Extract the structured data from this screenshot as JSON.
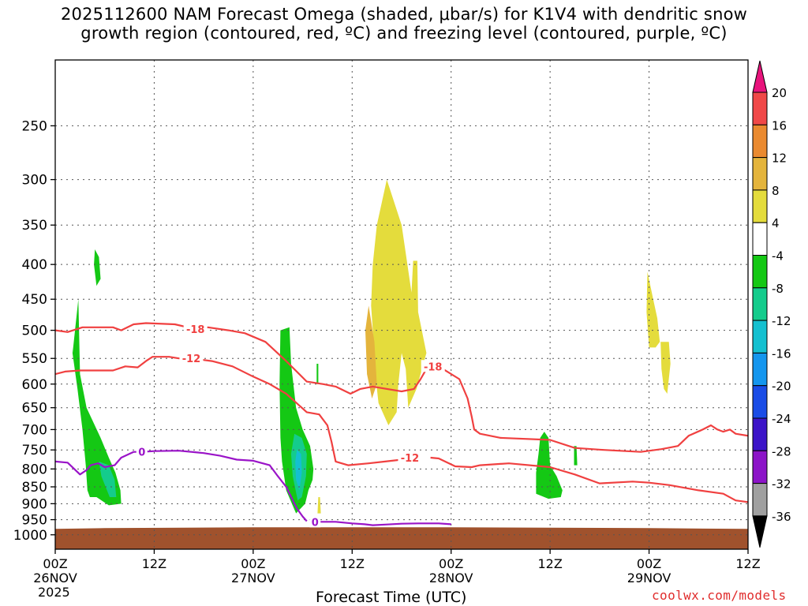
{
  "title": {
    "line1": "2025112600 NAM Forecast Omega (shaded, μbar/s) for K1V4 with dendritic snow",
    "line2": "growth region (contoured, red, ºC) and freezing level (contoured, purple, ºC)"
  },
  "credit": "coolwx.com/models",
  "chart_data": {
    "type": "contour",
    "x_axis": {
      "title": "Forecast Time (UTC)",
      "range_hours": [
        0,
        84
      ],
      "ticks": [
        {
          "h": 0,
          "label": "00Z",
          "sub": "26NOV",
          "sub2": "2025"
        },
        {
          "h": 12,
          "label": "12Z",
          "sub": "",
          "sub2": ""
        },
        {
          "h": 24,
          "label": "00Z",
          "sub": "27NOV",
          "sub2": ""
        },
        {
          "h": 36,
          "label": "12Z",
          "sub": "",
          "sub2": ""
        },
        {
          "h": 48,
          "label": "00Z",
          "sub": "28NOV",
          "sub2": ""
        },
        {
          "h": 60,
          "label": "12Z",
          "sub": "",
          "sub2": ""
        },
        {
          "h": 72,
          "label": "00Z",
          "sub": "29NOV",
          "sub2": ""
        },
        {
          "h": 84,
          "label": "12Z",
          "sub": "",
          "sub2": ""
        }
      ]
    },
    "y_axis": {
      "scale": "log",
      "range_hpa": [
        200,
        1050
      ],
      "ticks": [
        250,
        300,
        350,
        400,
        450,
        500,
        550,
        600,
        650,
        700,
        750,
        800,
        850,
        900,
        950,
        1000
      ]
    },
    "grid": true,
    "colorbar": {
      "levels": [
        "20",
        "16",
        "12",
        "8",
        "4",
        "-4",
        "-8",
        "-12",
        "-16",
        "-20",
        "-24",
        "-28",
        "-32",
        "-36"
      ],
      "colors": [
        "#e8147c",
        "#f04848",
        "#ea8a30",
        "#e4b43c",
        "#e4dc3c",
        "#ffffff",
        "#14c814",
        "#14cc8c",
        "#14c0d0",
        "#1496ee",
        "#1a4ce6",
        "#3c14c8",
        "#8c14c8",
        "#a0a0a0",
        "#000000"
      ]
    },
    "terrain": {
      "color": "#a0522d",
      "surface_hpa": 975
    },
    "shaded": [
      {
        "level": -4,
        "color": "#14c814",
        "pts": [
          [
            2.1,
            540
          ],
          [
            2.8,
            450
          ],
          [
            3.0,
            580
          ],
          [
            3.8,
            650
          ],
          [
            5.5,
            720
          ],
          [
            6.5,
            770
          ],
          [
            7.3,
            810
          ],
          [
            7.9,
            860
          ],
          [
            8.0,
            900
          ],
          [
            6.5,
            905
          ],
          [
            5.0,
            880
          ],
          [
            4.2,
            880
          ],
          [
            3.9,
            860
          ],
          [
            3.7,
            790
          ],
          [
            3.3,
            700
          ],
          [
            2.7,
            610
          ],
          [
            2.0,
            530
          ]
        ]
      },
      {
        "level": -4,
        "color": "#14c814",
        "pts": [
          [
            4.8,
            380
          ],
          [
            5.3,
            390
          ],
          [
            5.5,
            420
          ],
          [
            5.0,
            430
          ],
          [
            4.7,
            400
          ]
        ]
      },
      {
        "level": -4,
        "color": "#14c814",
        "pts": [
          [
            27.3,
            500
          ],
          [
            28.4,
            495
          ],
          [
            28.6,
            560
          ],
          [
            29.2,
            650
          ],
          [
            30.0,
            700
          ],
          [
            30.9,
            740
          ],
          [
            31.3,
            800
          ],
          [
            31.2,
            830
          ],
          [
            30.7,
            860
          ],
          [
            30.3,
            900
          ],
          [
            29.2,
            930
          ],
          [
            28.0,
            860
          ],
          [
            27.5,
            780
          ],
          [
            27.3,
            720
          ],
          [
            27.2,
            600
          ]
        ]
      },
      {
        "level": -4,
        "color": "#14c814",
        "pts": [
          [
            31.7,
            560
          ],
          [
            31.9,
            560
          ],
          [
            31.9,
            600
          ],
          [
            31.7,
            600
          ]
        ]
      },
      {
        "level": -4,
        "color": "#14c814",
        "pts": [
          [
            58.8,
            720
          ],
          [
            59.3,
            705
          ],
          [
            59.8,
            720
          ],
          [
            60.0,
            790
          ],
          [
            60.8,
            820
          ],
          [
            61.5,
            860
          ],
          [
            61.3,
            880
          ],
          [
            59.8,
            885
          ],
          [
            58.3,
            870
          ],
          [
            58.3,
            810
          ],
          [
            58.6,
            760
          ]
        ]
      },
      {
        "level": -4,
        "color": "#14c814",
        "pts": [
          [
            62.9,
            740
          ],
          [
            63.2,
            740
          ],
          [
            63.3,
            790
          ],
          [
            62.9,
            790
          ]
        ]
      },
      {
        "level": -8,
        "color": "#14cc8c",
        "pts": [
          [
            5.3,
            780
          ],
          [
            6.5,
            790
          ],
          [
            7.2,
            830
          ],
          [
            7.4,
            880
          ],
          [
            6.6,
            880
          ],
          [
            5.6,
            820
          ]
        ]
      },
      {
        "level": -8,
        "color": "#14cc8c",
        "pts": [
          [
            29.0,
            710
          ],
          [
            29.9,
            720
          ],
          [
            30.5,
            760
          ],
          [
            30.4,
            820
          ],
          [
            29.9,
            880
          ],
          [
            29.4,
            890
          ],
          [
            28.8,
            820
          ],
          [
            28.6,
            760
          ]
        ]
      },
      {
        "level": -12,
        "color": "#14c0d0",
        "pts": [
          [
            29.3,
            750
          ],
          [
            29.8,
            760
          ],
          [
            29.9,
            810
          ],
          [
            29.6,
            860
          ],
          [
            29.2,
            830
          ],
          [
            29.1,
            780
          ]
        ]
      },
      {
        "level": 4,
        "color": "#e4dc3c",
        "pts": [
          [
            40.2,
            300
          ],
          [
            42.0,
            350
          ],
          [
            43.2,
            440
          ],
          [
            43.4,
            395
          ],
          [
            43.9,
            395
          ],
          [
            44.0,
            470
          ],
          [
            45.0,
            540
          ],
          [
            43.8,
            610
          ],
          [
            42.8,
            650
          ],
          [
            42.5,
            570
          ],
          [
            42.0,
            540
          ],
          [
            41.6,
            600
          ],
          [
            41.4,
            660
          ],
          [
            40.4,
            690
          ],
          [
            39.2,
            640
          ],
          [
            38.8,
            580
          ],
          [
            38.6,
            520
          ],
          [
            38.3,
            460
          ],
          [
            38.5,
            400
          ],
          [
            39.0,
            350
          ]
        ]
      },
      {
        "level": 8,
        "color": "#e4b43c",
        "pts": [
          [
            38.0,
            460
          ],
          [
            38.7,
            520
          ],
          [
            39.0,
            600
          ],
          [
            38.4,
            630
          ],
          [
            37.8,
            580
          ],
          [
            37.6,
            500
          ]
        ]
      },
      {
        "level": 4,
        "color": "#e4dc3c",
        "pts": [
          [
            71.8,
            410
          ],
          [
            72.5,
            450
          ],
          [
            73.0,
            480
          ],
          [
            73.3,
            520
          ],
          [
            72.8,
            530
          ],
          [
            72.0,
            530
          ],
          [
            71.7,
            470
          ]
        ]
      },
      {
        "level": 4,
        "color": "#e4dc3c",
        "pts": [
          [
            73.4,
            520
          ],
          [
            74.4,
            520
          ],
          [
            74.6,
            560
          ],
          [
            74.2,
            620
          ],
          [
            73.8,
            610
          ],
          [
            73.5,
            570
          ]
        ]
      },
      {
        "level": 4,
        "color": "#e4dc3c",
        "pts": [
          [
            31.9,
            880
          ],
          [
            32.1,
            880
          ],
          [
            32.2,
            930
          ],
          [
            31.8,
            930
          ]
        ]
      }
    ],
    "contours": [
      {
        "name": "-18",
        "color": "#f04040",
        "label_at": [
          17.0,
          498
        ],
        "pts": [
          [
            0,
            500
          ],
          [
            1.5,
            503
          ],
          [
            3.3,
            495
          ],
          [
            7.0,
            495
          ],
          [
            8.0,
            500
          ],
          [
            9.5,
            490
          ],
          [
            11.0,
            488
          ],
          [
            14.5,
            490
          ],
          [
            17.0,
            498
          ],
          [
            18.5,
            495
          ],
          [
            21.0,
            500
          ],
          [
            23.0,
            505
          ],
          [
            25.5,
            520
          ],
          [
            28.0,
            555
          ],
          [
            30.5,
            595
          ],
          [
            32.5,
            600
          ],
          [
            34.0,
            605
          ],
          [
            35.8,
            620
          ],
          [
            37.0,
            610
          ],
          [
            38.5,
            605
          ],
          [
            42.0,
            615
          ],
          [
            43.5,
            610
          ],
          [
            44.3,
            590
          ],
          [
            45.0,
            570
          ]
        ]
      },
      {
        "name": "-18",
        "color": "#f04040",
        "label_at": [
          45.8,
          565
        ],
        "pts": [
          [
            45.8,
            565
          ],
          [
            47.0,
            570
          ],
          [
            49.0,
            590
          ],
          [
            50.0,
            630
          ],
          [
            50.5,
            670
          ],
          [
            50.8,
            700
          ],
          [
            51.5,
            710
          ],
          [
            54.0,
            720
          ],
          [
            60.0,
            725
          ],
          [
            63.0,
            745
          ],
          [
            66.5,
            750
          ],
          [
            71.0,
            755
          ],
          [
            73.5,
            748
          ],
          [
            75.5,
            740
          ],
          [
            76.8,
            715
          ],
          [
            78.5,
            700
          ],
          [
            79.5,
            690
          ],
          [
            80.3,
            700
          ],
          [
            81.0,
            705
          ],
          [
            81.8,
            700
          ],
          [
            82.5,
            710
          ],
          [
            84.0,
            715
          ]
        ]
      },
      {
        "name": "-12",
        "color": "#f04040",
        "label_at": [
          16.5,
          550
        ],
        "pts": [
          [
            0,
            580
          ],
          [
            1.2,
            575
          ],
          [
            3.0,
            573
          ],
          [
            7.0,
            573
          ],
          [
            8.5,
            565
          ],
          [
            10.0,
            567
          ],
          [
            11.0,
            555
          ],
          [
            11.8,
            547
          ],
          [
            13.8,
            547
          ],
          [
            15.0,
            550
          ],
          [
            16.5,
            550
          ],
          [
            19.0,
            555
          ],
          [
            21.5,
            565
          ],
          [
            24.0,
            585
          ],
          [
            26.0,
            600
          ],
          [
            28.0,
            620
          ],
          [
            30.5,
            660
          ],
          [
            32.0,
            665
          ],
          [
            33.0,
            690
          ],
          [
            33.5,
            730
          ],
          [
            34.0,
            780
          ],
          [
            35.5,
            790
          ],
          [
            38.0,
            785
          ],
          [
            40.0,
            780
          ],
          [
            42.0,
            775
          ],
          [
            43.0,
            770
          ]
        ]
      },
      {
        "name": "-12",
        "color": "#f04040",
        "label_at": [
          43.0,
          770
        ],
        "pts": [
          [
            45.5,
            770
          ],
          [
            46.5,
            772
          ],
          [
            48.5,
            793
          ],
          [
            50.5,
            795
          ],
          [
            51.5,
            790
          ],
          [
            55.0,
            785
          ],
          [
            60.0,
            795
          ],
          [
            63.0,
            815
          ],
          [
            66.0,
            840
          ],
          [
            70.0,
            835
          ],
          [
            72.0,
            838
          ],
          [
            74.5,
            845
          ],
          [
            78.0,
            860
          ],
          [
            81.0,
            870
          ],
          [
            82.5,
            890
          ],
          [
            84.0,
            895
          ]
        ]
      },
      {
        "name": "0",
        "color": "#9a14c8",
        "label_at": [
          10.5,
          755
        ],
        "pts": [
          [
            0,
            780
          ],
          [
            1.5,
            783
          ],
          [
            3.0,
            815
          ],
          [
            3.8,
            803
          ],
          [
            4.3,
            790
          ],
          [
            5.2,
            785
          ],
          [
            6.0,
            795
          ],
          [
            7.2,
            790
          ],
          [
            8.0,
            770
          ],
          [
            9.0,
            760
          ],
          [
            9.5,
            755
          ],
          [
            10.5,
            755
          ],
          [
            12.0,
            753
          ],
          [
            15.0,
            752
          ],
          [
            18.0,
            758
          ],
          [
            20.0,
            765
          ],
          [
            22.0,
            775
          ],
          [
            24.0,
            778
          ],
          [
            26.0,
            790
          ],
          [
            27.0,
            820
          ],
          [
            28.0,
            850
          ],
          [
            29.3,
            915
          ],
          [
            30.0,
            940
          ],
          [
            30.5,
            955
          ]
        ]
      },
      {
        "name": "0",
        "color": "#9a14c8",
        "label_at": [
          31.5,
          957
        ],
        "pts": [
          [
            31.5,
            957
          ],
          [
            34.0,
            957
          ],
          [
            36.0,
            962
          ],
          [
            37.5,
            965
          ],
          [
            38.5,
            968
          ],
          [
            40.0,
            966
          ],
          [
            42.0,
            963
          ],
          [
            44.0,
            962
          ],
          [
            46.5,
            962
          ],
          [
            48.0,
            965
          ]
        ]
      }
    ]
  }
}
